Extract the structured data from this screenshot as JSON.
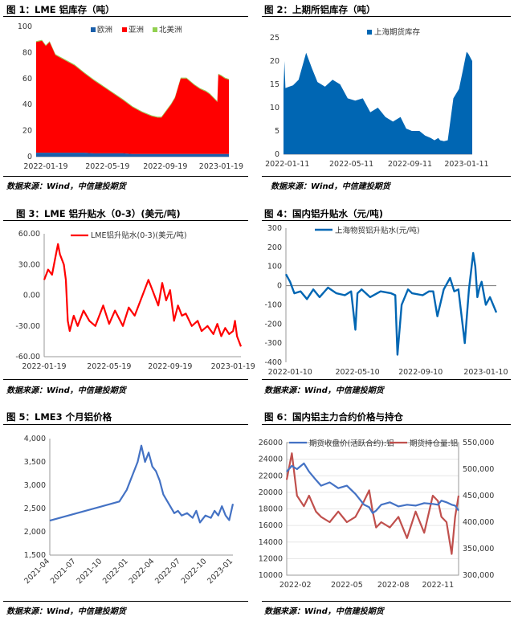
{
  "titles": {
    "c1": "图 1：LME 铝库存（吨）",
    "c2": "图 2：上期所铝库存（吨）",
    "c3": "图 3：LME 铝升贴水（0-3）(美元/吨)",
    "c4": "图 4：国内铝升贴水（元/吨)",
    "c5": "图 5：LME3 个月铝价格",
    "c6": "图 6：国内铝主力合约价格与持仓"
  },
  "source": "数据来源：Wind，中信建投期货",
  "colors": {
    "red": "#ff0000",
    "blue": "#1a5faa",
    "green": "#92d050",
    "navy": "#1f3f91",
    "lineblue": "#0066b3",
    "steel": "#4472c4",
    "brick": "#c0504d"
  },
  "chart_data": [
    {
      "id": "c1",
      "type": "area",
      "ylim": [
        0,
        100
      ],
      "yticks": [
        0,
        20,
        40,
        60,
        80,
        100
      ],
      "xtick_labels": [
        "2022-01-19",
        "2022-05-19",
        "2022-09-19",
        "2023-01-19"
      ],
      "legend": [
        "欧洲",
        "亚洲",
        "北美洲"
      ],
      "x": [
        0,
        0.03,
        0.05,
        0.07,
        0.1,
        0.15,
        0.2,
        0.25,
        0.3,
        0.35,
        0.4,
        0.45,
        0.5,
        0.55,
        0.6,
        0.63,
        0.65,
        0.66,
        0.7,
        0.72,
        0.75,
        0.78,
        0.82,
        0.85,
        0.88,
        0.9,
        0.92,
        0.94,
        0.945,
        0.96,
        0.98,
        1.0
      ],
      "series": [
        {
          "name": "亚洲",
          "values": [
            84,
            85,
            81,
            84,
            74,
            70,
            66,
            60,
            55,
            50,
            45,
            40,
            35,
            31,
            28,
            27,
            27,
            29,
            37,
            42,
            57,
            57,
            52,
            49,
            47,
            45,
            42,
            39,
            60,
            59,
            57,
            56
          ]
        },
        {
          "name": "北美洲",
          "values": [
            1,
            1,
            1,
            1,
            1,
            1,
            1,
            1,
            1,
            1,
            1,
            1,
            1,
            1,
            1,
            1,
            1,
            1,
            1,
            1,
            1,
            1,
            1,
            1,
            1,
            1,
            1,
            1,
            1,
            1,
            1,
            1
          ]
        },
        {
          "name": "欧洲",
          "values": [
            3,
            3,
            3,
            3,
            3,
            3,
            3,
            3,
            2.5,
            2.5,
            2.5,
            2.5,
            2,
            2,
            2,
            2,
            2,
            2,
            2,
            2,
            2,
            2,
            2,
            2,
            2,
            2,
            2,
            2,
            2,
            2,
            2,
            2
          ]
        }
      ]
    },
    {
      "id": "c2",
      "type": "area",
      "ylim": [
        0,
        25
      ],
      "yticks": [
        0,
        5,
        10,
        15,
        20,
        25
      ],
      "xtick_labels": [
        "2022-01-11",
        "2022-05-11",
        "2022-09-11",
        "2023-01-11"
      ],
      "legend": [
        "上海期货库存"
      ],
      "x": [
        0,
        0.005,
        0.01,
        0.03,
        0.05,
        0.08,
        0.12,
        0.15,
        0.18,
        0.22,
        0.26,
        0.3,
        0.34,
        0.38,
        0.42,
        0.46,
        0.5,
        0.54,
        0.58,
        0.62,
        0.65,
        0.68,
        0.72,
        0.75,
        0.78,
        0.8,
        0.82,
        0.83,
        0.85,
        0.87,
        0.9,
        0.93,
        0.95,
        0.97,
        0.98,
        1.0
      ],
      "series": [
        {
          "name": "上海期货库存",
          "values": [
            14,
            20,
            14.2,
            14.5,
            14.8,
            16,
            21.8,
            18.5,
            15.5,
            14.5,
            16,
            15,
            12,
            11.5,
            12,
            9,
            10,
            8,
            7,
            8,
            5.5,
            5,
            5,
            4,
            3.5,
            3,
            3.5,
            3,
            2.8,
            3,
            12,
            14,
            18,
            22,
            21.5,
            20
          ]
        }
      ]
    },
    {
      "id": "c3",
      "type": "line",
      "ylim": [
        -60,
        60
      ],
      "yticks": [
        -60,
        -30,
        0,
        30,
        60
      ],
      "ytick_labels": [
        "-60.00",
        "-30.00",
        "0.00",
        "30.00",
        "60.00"
      ],
      "xtick_labels": [
        "2022-01-19",
        "2022-05-19",
        "2022-09-19",
        "2023-01-19"
      ],
      "legend": [
        "LME铝升贴水(0-3)(美元/吨)"
      ],
      "x": [
        0,
        0.02,
        0.04,
        0.06,
        0.07,
        0.08,
        0.1,
        0.11,
        0.12,
        0.13,
        0.15,
        0.17,
        0.2,
        0.23,
        0.26,
        0.3,
        0.33,
        0.36,
        0.4,
        0.43,
        0.46,
        0.5,
        0.53,
        0.55,
        0.58,
        0.6,
        0.62,
        0.64,
        0.66,
        0.68,
        0.7,
        0.72,
        0.75,
        0.78,
        0.8,
        0.83,
        0.86,
        0.88,
        0.9,
        0.92,
        0.94,
        0.96,
        0.97,
        0.98,
        1.0
      ],
      "series": [
        {
          "name": "LME铝升贴水(0-3)(美元/吨)",
          "values": [
            15,
            25,
            20,
            40,
            50,
            40,
            30,
            15,
            -25,
            -35,
            -20,
            -30,
            -15,
            -25,
            -30,
            -10,
            -28,
            -15,
            -30,
            -12,
            -20,
            0,
            15,
            5,
            -10,
            12,
            -5,
            5,
            -25,
            -10,
            -20,
            -18,
            -30,
            -25,
            -35,
            -30,
            -38,
            -28,
            -40,
            -32,
            -38,
            -35,
            -25,
            -40,
            -50
          ]
        }
      ]
    },
    {
      "id": "c4",
      "type": "line",
      "ylim": [
        -400,
        300
      ],
      "yticks": [
        -400,
        -300,
        -200,
        -100,
        0,
        100,
        200,
        300
      ],
      "xtick_labels": [
        "2022-01-10",
        "2022-05-10",
        "2022-09-10",
        "2023-01-10"
      ],
      "legend": [
        "上海物贸铝升贴水(元/吨)"
      ],
      "x": [
        0,
        0.02,
        0.04,
        0.07,
        0.1,
        0.13,
        0.16,
        0.2,
        0.24,
        0.28,
        0.31,
        0.33,
        0.34,
        0.36,
        0.4,
        0.45,
        0.5,
        0.52,
        0.53,
        0.55,
        0.58,
        0.6,
        0.65,
        0.68,
        0.7,
        0.72,
        0.75,
        0.78,
        0.8,
        0.82,
        0.85,
        0.87,
        0.89,
        0.9,
        0.91,
        0.92,
        0.93,
        0.95,
        0.97,
        1.0
      ],
      "series": [
        {
          "name": "上海物贸铝升贴水(元/吨)",
          "values": [
            60,
            20,
            -40,
            -30,
            -70,
            -20,
            -60,
            -10,
            -40,
            -50,
            -30,
            -230,
            -40,
            -20,
            -60,
            -30,
            -40,
            -50,
            -360,
            -100,
            -20,
            -40,
            -50,
            -30,
            -30,
            -160,
            -20,
            40,
            -30,
            -20,
            -300,
            -20,
            170,
            100,
            -60,
            -10,
            20,
            -100,
            -60,
            -140
          ]
        }
      ]
    },
    {
      "id": "c5",
      "type": "line",
      "ylim": [
        1500,
        4000
      ],
      "yticks": [
        1500,
        2000,
        2500,
        3000,
        3500,
        4000
      ],
      "ytick_labels": [
        "1,500",
        "2,000",
        "2,500",
        "3,000",
        "3,500",
        "4,000"
      ],
      "xtick_labels": [
        "2021-04",
        "2021-07",
        "2021-10",
        "2022-01",
        "2022-04",
        "2022-07",
        "2022-10",
        "2023-01"
      ],
      "x": [
        0,
        0.38,
        0.42,
        0.45,
        0.48,
        0.5,
        0.52,
        0.54,
        0.56,
        0.58,
        0.6,
        0.62,
        0.65,
        0.68,
        0.7,
        0.72,
        0.75,
        0.78,
        0.8,
        0.82,
        0.85,
        0.88,
        0.9,
        0.92,
        0.94,
        0.96,
        0.98,
        1.0
      ],
      "series": [
        {
          "name": "LME3个月铝",
          "values": [
            2240,
            2650,
            2900,
            3200,
            3500,
            3850,
            3500,
            3700,
            3400,
            3300,
            3100,
            2800,
            2600,
            2400,
            2450,
            2350,
            2400,
            2300,
            2450,
            2200,
            2350,
            2300,
            2450,
            2350,
            2550,
            2350,
            2250,
            2600
          ]
        }
      ]
    },
    {
      "id": "c6",
      "type": "line",
      "y_left": {
        "ylim": [
          10000,
          26000
        ],
        "yticks": [
          10000,
          12000,
          14000,
          16000,
          18000,
          20000,
          22000,
          24000,
          26000
        ]
      },
      "y_right": {
        "ylim": [
          300000,
          550000
        ],
        "ytick_labels": [
          "300,000",
          "350,000",
          "400,000",
          "450,000",
          "500,000",
          "550,000"
        ],
        "yticks": [
          300000,
          350000,
          400000,
          450000,
          500000,
          550000
        ]
      },
      "xtick_labels": [
        "2022-02",
        "2022-05",
        "2022-08",
        "2022-11"
      ],
      "legend": [
        "期货收盘价(活跃合约):铝",
        "期货持仓量:铝"
      ],
      "x": [
        0,
        0.03,
        0.06,
        0.1,
        0.13,
        0.17,
        0.2,
        0.25,
        0.3,
        0.35,
        0.4,
        0.45,
        0.48,
        0.5,
        0.52,
        0.55,
        0.6,
        0.65,
        0.7,
        0.75,
        0.8,
        0.85,
        0.88,
        0.9,
        0.93,
        0.96,
        0.98,
        1.0
      ],
      "series": [
        {
          "name": "期货收盘价(活跃合约):铝",
          "values": [
            22500,
            23200,
            22800,
            23500,
            22500,
            21500,
            20800,
            21200,
            20500,
            20800,
            19800,
            18500,
            18200,
            17500,
            17800,
            18500,
            18800,
            18300,
            18500,
            18400,
            18700,
            18600,
            18500,
            19000,
            18800,
            18500,
            18400,
            17800
          ]
        },
        {
          "name": "期货持仓量:铝",
          "values": [
            480000,
            530000,
            450000,
            430000,
            450000,
            420000,
            410000,
            400000,
            420000,
            400000,
            410000,
            440000,
            460000,
            420000,
            390000,
            400000,
            390000,
            410000,
            370000,
            420000,
            380000,
            450000,
            440000,
            410000,
            400000,
            340000,
            410000,
            450000
          ]
        }
      ]
    }
  ]
}
